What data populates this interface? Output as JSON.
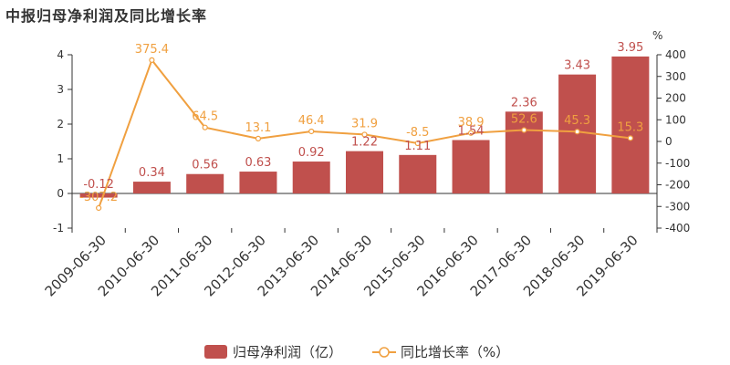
{
  "title": "中报归母净利润及同比增长率",
  "chart_data": {
    "type": "bar",
    "categories": [
      "2009-06-30",
      "2010-06-30",
      "2011-06-30",
      "2012-06-30",
      "2013-06-30",
      "2014-06-30",
      "2015-06-30",
      "2016-06-30",
      "2017-06-30",
      "2018-06-30",
      "2019-06-30"
    ],
    "series": [
      {
        "name": "归母净利润（亿）",
        "type": "bar",
        "axis": "left",
        "values": [
          -0.12,
          0.34,
          0.56,
          0.63,
          0.92,
          1.22,
          1.11,
          1.54,
          2.36,
          3.43,
          3.95
        ],
        "labels": [
          "-0.12",
          "0.34",
          "0.56",
          "0.63",
          "0.92",
          "1.22",
          "1.11",
          "1.54",
          "2.36",
          "3.43",
          "3.95"
        ],
        "color": "#c0504d"
      },
      {
        "name": "同比增长率（%）",
        "type": "line",
        "axis": "right",
        "values": [
          -307.2,
          375.4,
          64.5,
          13.1,
          46.4,
          31.9,
          -8.5,
          38.9,
          52.6,
          45.3,
          15.3
        ],
        "labels": [
          "-307.2",
          "375.4",
          "64.5",
          "13.1",
          "46.4",
          "31.9",
          "-8.5",
          "38.9",
          "52.6",
          "45.3",
          "15.3"
        ],
        "color": "#f0a040"
      }
    ],
    "y_left": {
      "ylim": [
        -1,
        4
      ],
      "ticks": [
        "-1",
        "0",
        "1",
        "2",
        "3",
        "4"
      ]
    },
    "y_right": {
      "ylim": [
        -400,
        400
      ],
      "unit": "%",
      "ticks": [
        "-400",
        "-300",
        "-200",
        "-100",
        "0",
        "100",
        "200",
        "300",
        "400"
      ]
    },
    "grid": false,
    "legend": "bottom-center"
  }
}
